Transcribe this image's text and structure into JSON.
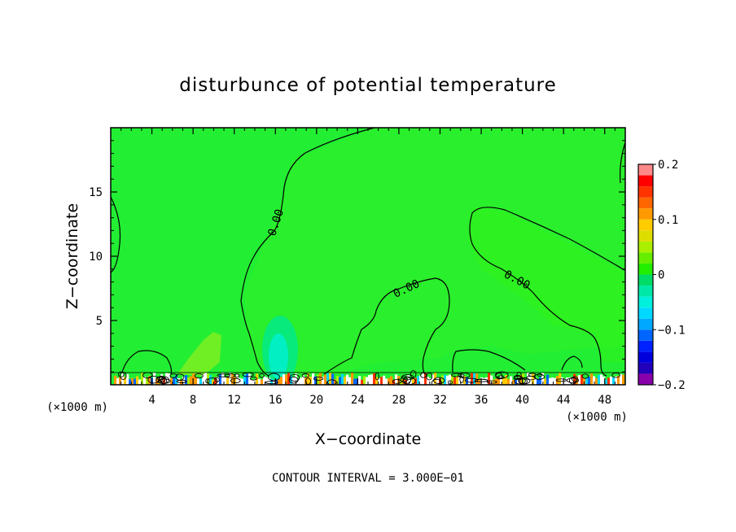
{
  "chart_data": {
    "type": "heatmap",
    "title": "disturbunce of potential temperature",
    "xlabel": "X−coordinate",
    "ylabel": "Z−coordinate",
    "x_unit_left": "(×1000 m)",
    "x_unit_right": "(×1000 m)",
    "xlim": [
      0,
      50
    ],
    "ylim": [
      0,
      20
    ],
    "x_ticks": [
      4,
      8,
      12,
      16,
      20,
      24,
      28,
      32,
      36,
      40,
      44,
      48
    ],
    "x_tick_labels": [
      "4",
      "8",
      "12",
      "16",
      "20",
      "24",
      "28",
      "32",
      "36",
      "40",
      "44",
      "48"
    ],
    "y_ticks": [
      5,
      10,
      15
    ],
    "y_tick_labels": [
      "5",
      "10",
      "15"
    ],
    "contour_labels": [
      "0.00",
      "0.00",
      "0.00"
    ],
    "contour_label_value": 0.0,
    "footer": "CONTOUR INTERVAL = 3.000E−01",
    "colorbar": {
      "range": [
        -0.2,
        0.2
      ],
      "levels": [
        -0.2,
        -0.18,
        -0.16,
        -0.14,
        -0.12,
        -0.1,
        -0.08,
        -0.06,
        -0.04,
        -0.02,
        0,
        0.02,
        0.04,
        0.06,
        0.08,
        0.1,
        0.12,
        0.14,
        0.16,
        0.18,
        0.2
      ],
      "colors": [
        "#8800aa",
        "#2200bb",
        "#0000dd",
        "#0022ff",
        "#0066ff",
        "#00a8ff",
        "#00d8ff",
        "#00f0dd",
        "#00e8a8",
        "#00dd66",
        "#22ee00",
        "#66ee00",
        "#aaee00",
        "#dddd00",
        "#ffcc00",
        "#ff9900",
        "#ff6600",
        "#ff3300",
        "#ff0000",
        "#ff8888"
      ],
      "tick_values": [
        -0.2,
        -0.1,
        0,
        0.1,
        0.2
      ],
      "tick_labels": [
        "−0.2",
        "−0.1",
        "0",
        "0.1",
        "0.2"
      ]
    },
    "background_value": 0.0,
    "background_color": "#22ee33"
  }
}
